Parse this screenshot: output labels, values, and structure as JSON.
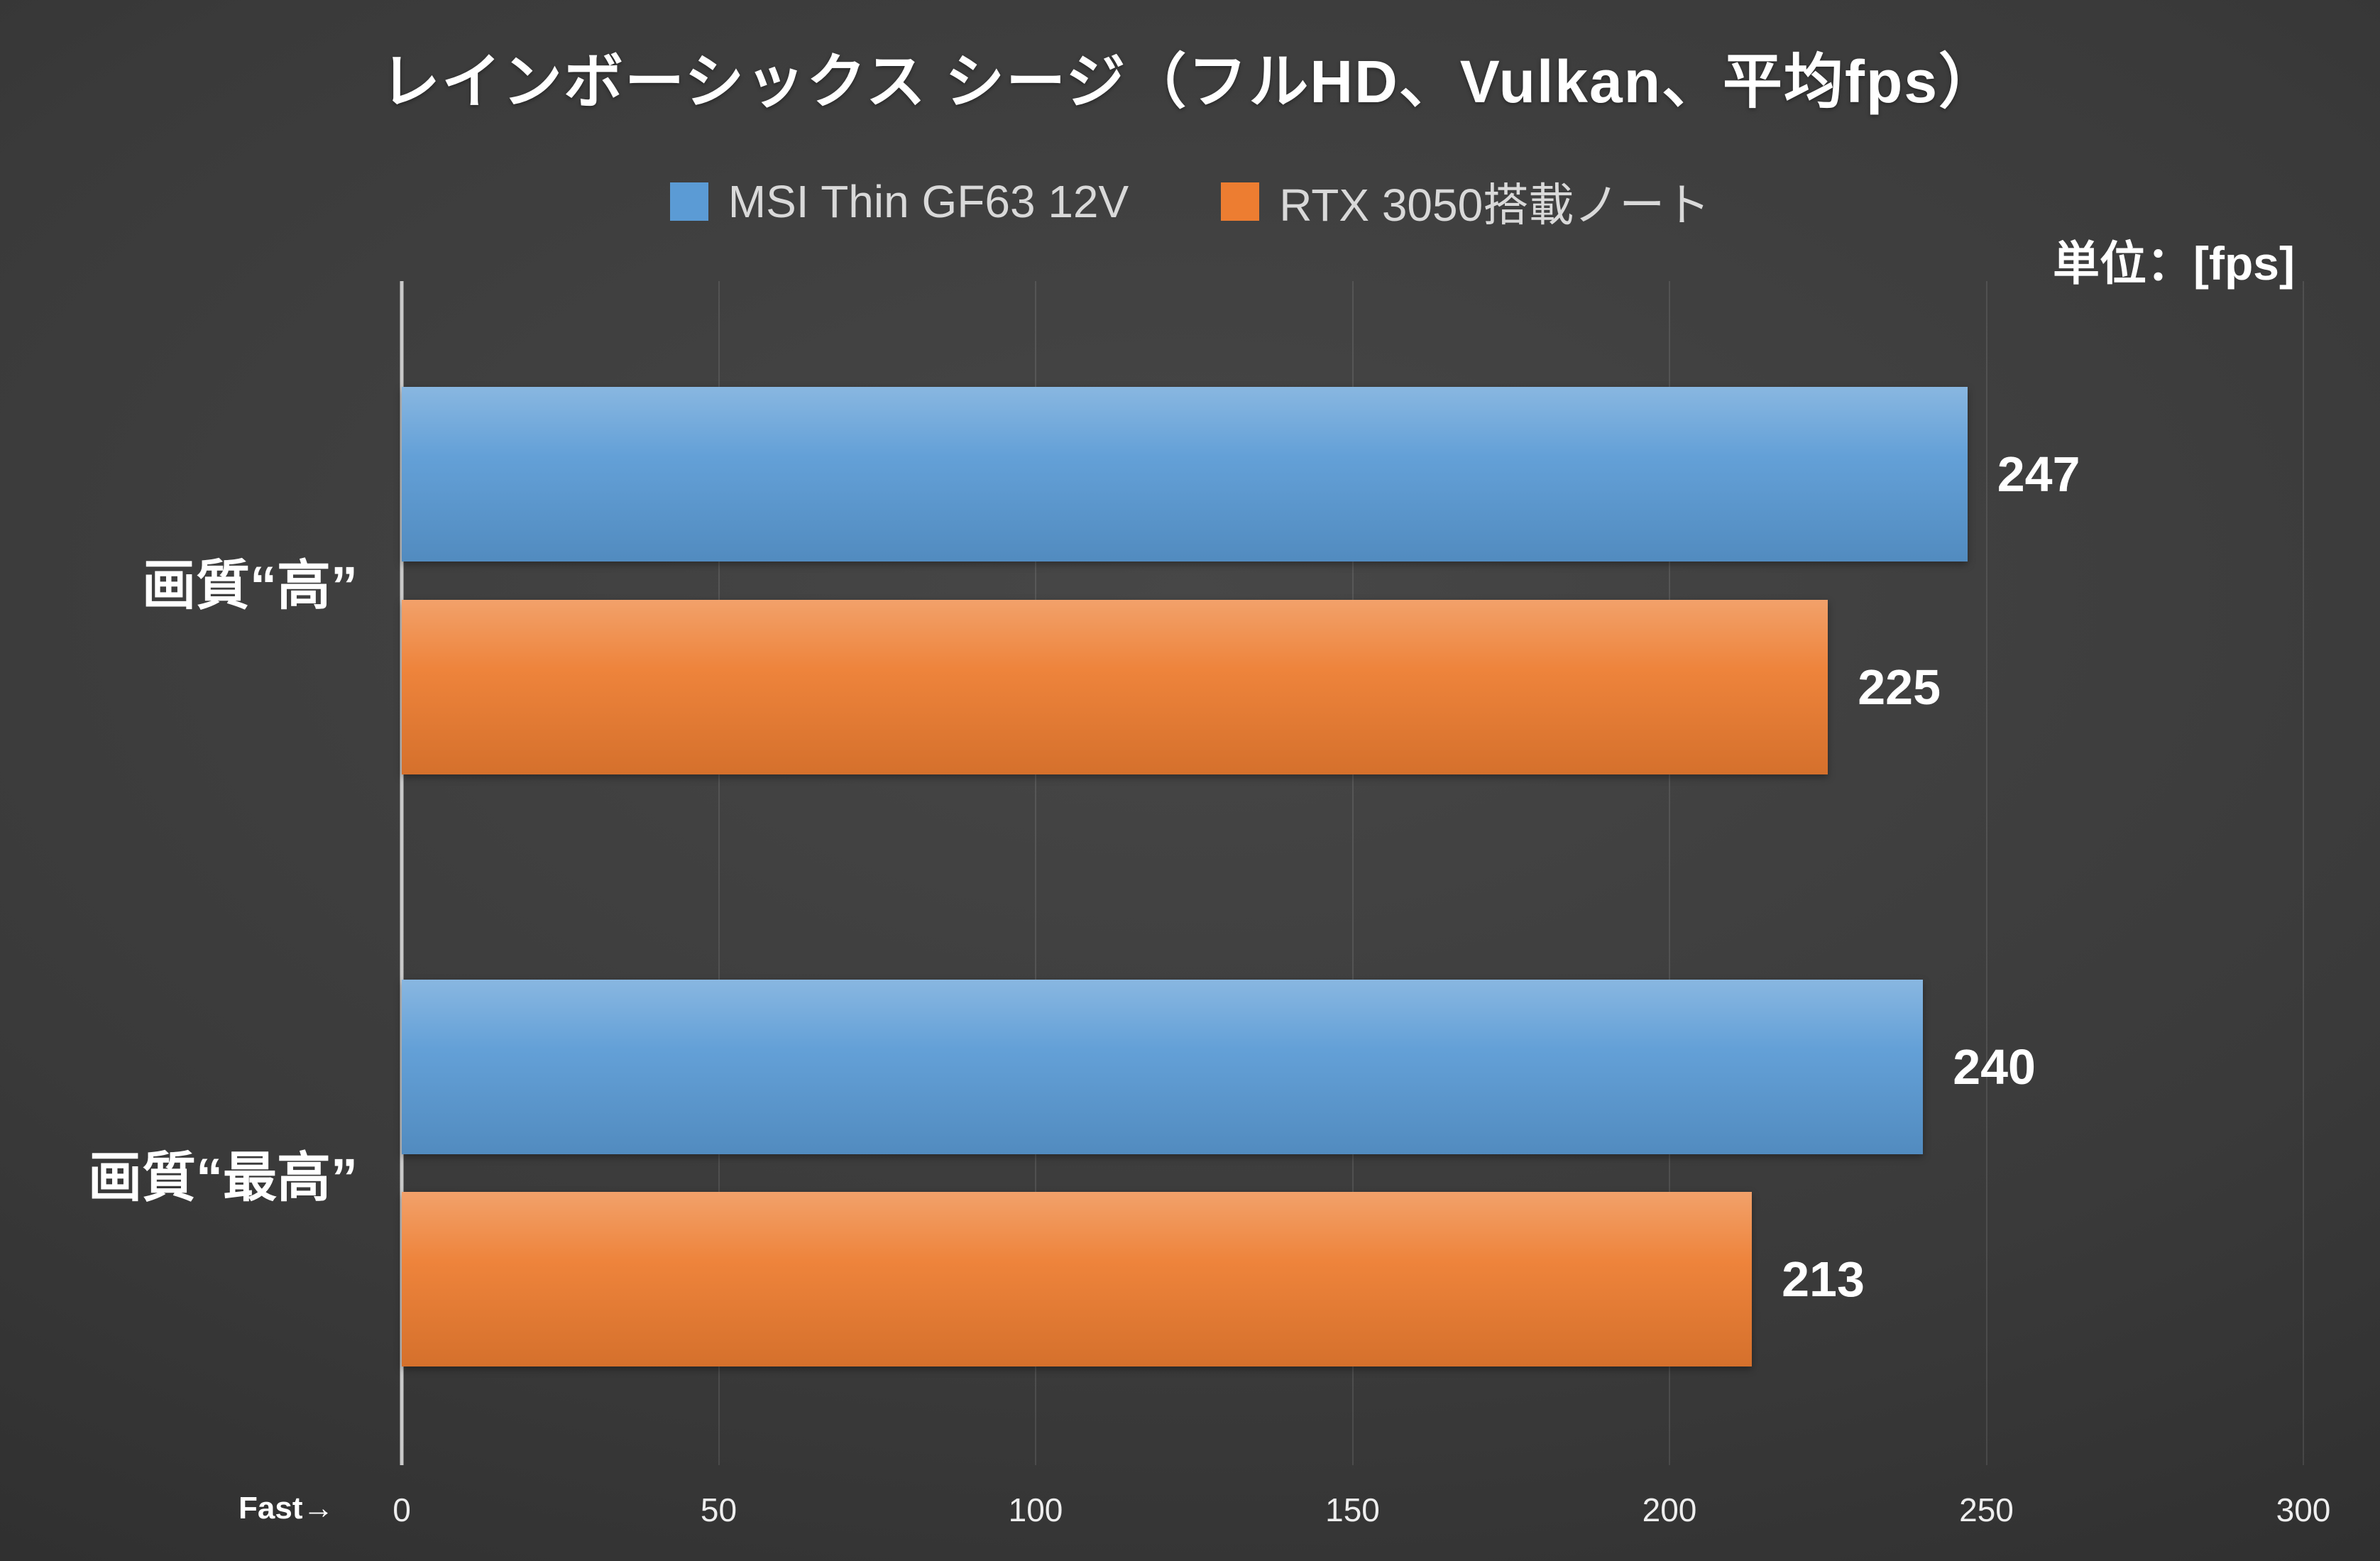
{
  "chart": {
    "title": "レインボーシックス シージ（フルHD、Vulkan、平均fps）",
    "unit_label": "単位：[fps]",
    "fast_label": "Fast→"
  },
  "chart_data": {
    "type": "bar",
    "orientation": "horizontal",
    "title": "レインボーシックス シージ（フルHD、Vulkan、平均fps）",
    "categories": [
      "画質“高”",
      "画質“最高”"
    ],
    "series": [
      {
        "name": "MSI Thin GF63 12V",
        "color": "#5b9bd5",
        "values": [
          247,
          240
        ]
      },
      {
        "name": "RTX 3050搭載ノート",
        "color": "#ed7d31",
        "values": [
          225,
          213
        ]
      }
    ],
    "xlabel": "",
    "ylabel": "",
    "xlim": [
      0,
      300
    ],
    "xticks": [
      0,
      50,
      100,
      150,
      200,
      250,
      300
    ],
    "unit": "fps",
    "grid": true,
    "legend_position": "top",
    "background": "#3a3a3a"
  }
}
